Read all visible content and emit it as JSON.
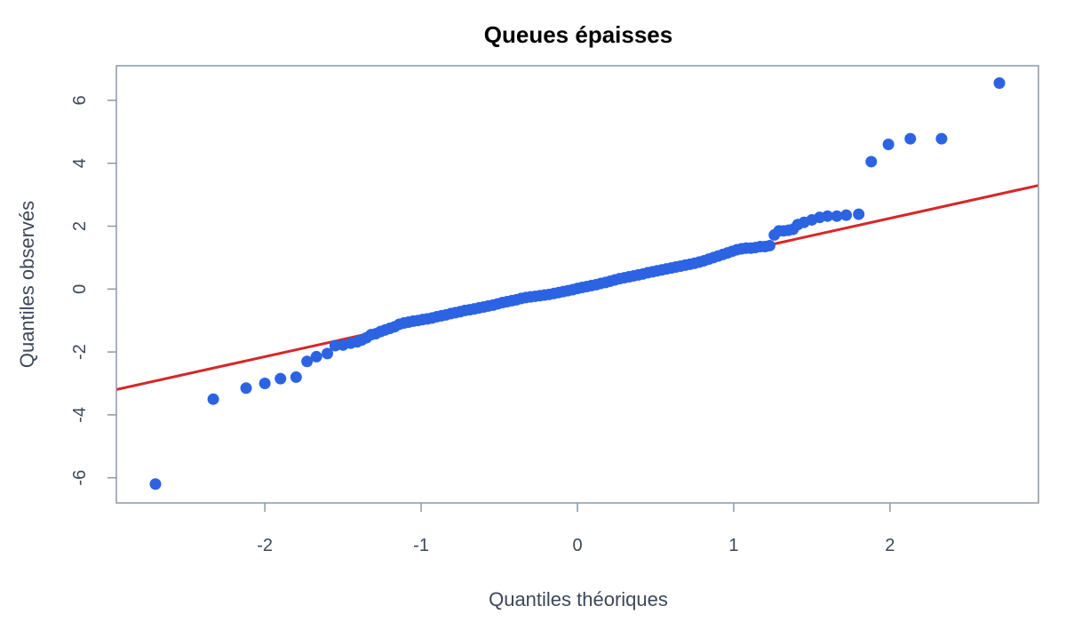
{
  "chart_data": {
    "type": "scatter",
    "title": "Queues épaisses",
    "xlabel": "Quantiles théoriques",
    "ylabel": "Quantiles observés",
    "xlim": [
      -2.95,
      2.95
    ],
    "ylim": [
      -6.8,
      7.1
    ],
    "xticks": [
      -2,
      -1,
      0,
      1,
      2
    ],
    "xtick_labels": [
      "-2",
      "-1",
      "0",
      "1",
      "2"
    ],
    "yticks": [
      -6,
      -4,
      -2,
      0,
      2,
      4,
      6
    ],
    "ytick_labels": [
      "-6",
      "-4",
      "-2",
      "0",
      "2",
      "4",
      "6"
    ],
    "grid": false,
    "colors": {
      "points": "#2b63e3",
      "line": "#d62728"
    },
    "reference_line": {
      "intercept": 0.05,
      "slope": 1.1
    },
    "series": [
      {
        "x": [
          -2.7,
          -2.33,
          -2.12,
          -2.0,
          -1.9,
          -1.8,
          -1.73,
          -1.67,
          -1.6,
          -1.55,
          -1.5,
          -1.45,
          -1.41,
          -1.38,
          -1.35,
          -1.32,
          -1.29,
          -1.26,
          -1.23,
          -1.2,
          -1.17,
          -1.14,
          -1.11,
          -1.08,
          -1.05,
          -1.02,
          -0.99,
          -0.96,
          -0.93,
          -0.9,
          -0.87,
          -0.84,
          -0.81,
          -0.78,
          -0.75,
          -0.72,
          -0.69,
          -0.66,
          -0.63,
          -0.6,
          -0.57,
          -0.54,
          -0.51,
          -0.48,
          -0.45,
          -0.42,
          -0.39,
          -0.36,
          -0.33,
          -0.3,
          -0.27,
          -0.24,
          -0.21,
          -0.18,
          -0.15,
          -0.12,
          -0.09,
          -0.06,
          -0.03,
          0.0,
          0.03,
          0.06,
          0.09,
          0.12,
          0.15,
          0.18,
          0.21,
          0.24,
          0.27,
          0.3,
          0.33,
          0.36,
          0.39,
          0.42,
          0.45,
          0.48,
          0.51,
          0.54,
          0.57,
          0.6,
          0.63,
          0.66,
          0.69,
          0.72,
          0.75,
          0.78,
          0.81,
          0.84,
          0.87,
          0.9,
          0.93,
          0.96,
          0.99,
          1.02,
          1.05,
          1.08,
          1.11,
          1.14,
          1.17,
          1.2,
          1.23,
          1.26,
          1.29,
          1.32,
          1.35,
          1.38,
          1.41,
          1.45,
          1.5,
          1.55,
          1.6,
          1.66,
          1.72,
          1.8,
          1.88,
          1.99,
          2.13,
          2.33,
          2.7
        ],
        "y": [
          -6.2,
          -3.5,
          -3.15,
          -3.0,
          -2.85,
          -2.8,
          -2.3,
          -2.15,
          -2.05,
          -1.8,
          -1.78,
          -1.72,
          -1.68,
          -1.62,
          -1.55,
          -1.45,
          -1.42,
          -1.35,
          -1.3,
          -1.25,
          -1.2,
          -1.12,
          -1.08,
          -1.05,
          -1.02,
          -1.0,
          -0.97,
          -0.95,
          -0.92,
          -0.88,
          -0.85,
          -0.82,
          -0.78,
          -0.75,
          -0.72,
          -0.68,
          -0.66,
          -0.63,
          -0.6,
          -0.57,
          -0.54,
          -0.51,
          -0.47,
          -0.43,
          -0.4,
          -0.37,
          -0.34,
          -0.3,
          -0.27,
          -0.25,
          -0.23,
          -0.21,
          -0.19,
          -0.17,
          -0.14,
          -0.11,
          -0.08,
          -0.05,
          -0.02,
          0.02,
          0.05,
          0.08,
          0.11,
          0.14,
          0.18,
          0.21,
          0.25,
          0.29,
          0.33,
          0.36,
          0.39,
          0.42,
          0.45,
          0.48,
          0.52,
          0.55,
          0.58,
          0.61,
          0.64,
          0.67,
          0.7,
          0.73,
          0.76,
          0.79,
          0.82,
          0.86,
          0.9,
          0.95,
          1.0,
          1.05,
          1.1,
          1.15,
          1.2,
          1.25,
          1.28,
          1.3,
          1.3,
          1.32,
          1.35,
          1.35,
          1.38,
          1.72,
          1.85,
          1.85,
          1.87,
          1.9,
          2.05,
          2.12,
          2.2,
          2.28,
          2.32,
          2.32,
          2.35,
          2.38,
          4.05,
          4.6,
          4.78,
          4.78,
          6.55
        ]
      }
    ]
  }
}
